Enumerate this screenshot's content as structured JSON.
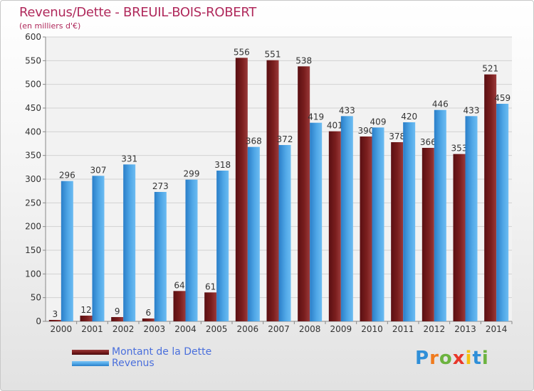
{
  "chart_data": {
    "type": "bar",
    "title": "Revenus/Dette - BREUIL-BOIS-ROBERT",
    "subtitle": "(en milliers d'€)",
    "categories": [
      "2000",
      "2001",
      "2002",
      "2003",
      "2004",
      "2005",
      "2006",
      "2007",
      "2008",
      "2009",
      "2010",
      "2011",
      "2012",
      "2013",
      "2014"
    ],
    "series": [
      {
        "name": "Montant de la Dette",
        "values": [
          3,
          12,
          9,
          6,
          64,
          61,
          556,
          551,
          538,
          401,
          390,
          378,
          366,
          353,
          521
        ],
        "color": "#7a1e1e"
      },
      {
        "name": "Revenus",
        "values": [
          296,
          307,
          331,
          273,
          299,
          318,
          368,
          372,
          419,
          433,
          409,
          420,
          446,
          433,
          459
        ],
        "color": "#4fa6e6"
      }
    ],
    "ylim": [
      0,
      600
    ],
    "yticks": [
      0,
      50,
      100,
      150,
      200,
      250,
      300,
      350,
      400,
      450,
      500,
      550,
      600
    ],
    "grid": true,
    "legend_position": "bottom-left"
  },
  "logo": {
    "text": "Proxiti",
    "letters": [
      "P",
      "r",
      "o",
      "x",
      "i",
      "t",
      "i"
    ],
    "colors": [
      "#2f8fd8",
      "#f07b1e",
      "#6cb33f",
      "#e8372a",
      "#f4c10f",
      "#2f8fd8",
      "#6cb33f"
    ]
  }
}
